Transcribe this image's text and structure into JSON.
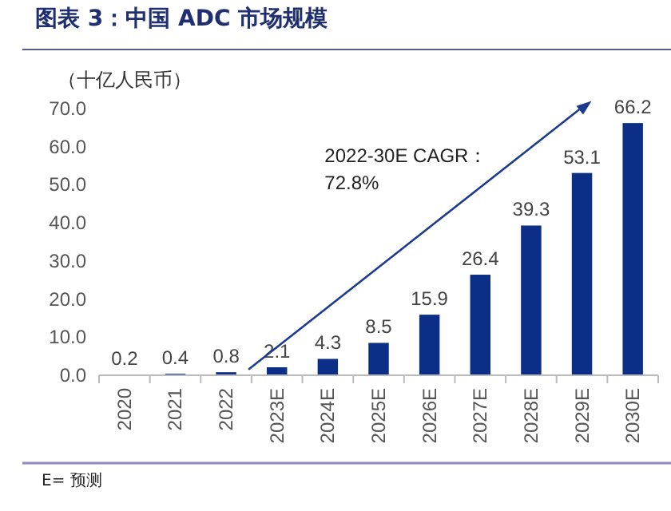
{
  "chart_data": {
    "type": "bar",
    "title": "图表 3：中国 ADC 市场规模",
    "ylabel": "（十亿人民币）",
    "categories": [
      "2020",
      "2021",
      "2022",
      "2023E",
      "2024E",
      "2025E",
      "2026E",
      "2027E",
      "2028E",
      "2029E",
      "2030E"
    ],
    "values": [
      0.2,
      0.4,
      0.8,
      2.1,
      4.3,
      8.5,
      15.9,
      26.4,
      39.3,
      53.1,
      66.2
    ],
    "color": "#0b2f86",
    "data_labels": true,
    "grid": false,
    "ylim": [
      0,
      70
    ],
    "yticks": [
      {
        "value": 0,
        "label": "0.0"
      },
      {
        "value": 10,
        "label": "10.0"
      },
      {
        "value": 20,
        "label": "20.0"
      },
      {
        "value": 30,
        "label": "30.0"
      },
      {
        "value": 40,
        "label": "40.0"
      },
      {
        "value": 50,
        "label": "50.0"
      },
      {
        "value": 60,
        "label": "60.0"
      },
      {
        "value": 70,
        "label": "70.0"
      }
    ],
    "annotations": [
      {
        "text": "2022-30E CAGR：\n72.8%"
      },
      "E= 预测"
    ]
  }
}
